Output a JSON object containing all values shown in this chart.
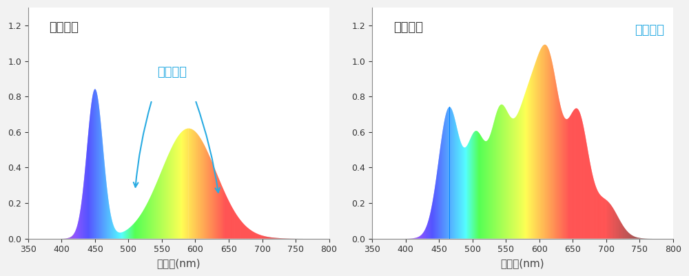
{
  "xlim": [
    350,
    800
  ],
  "ylim": [
    0,
    1.3
  ],
  "yticks": [
    0,
    0.2,
    0.4,
    0.6,
    0.8,
    1.0,
    1.2
  ],
  "xticks": [
    350,
    400,
    450,
    500,
    550,
    600,
    650,
    700,
    750,
    800
  ],
  "xlabel": "光波长(nm)",
  "ylabel1": "相对光谱",
  "annotation1": "光谱缺失",
  "annotation2": "光谱均衡",
  "bg_color": "#f2f2f2",
  "panel_bg": "#ffffff",
  "annotation_color": "#29abe2",
  "text_color": "#333333",
  "title_fontsize": 13,
  "label_fontsize": 11,
  "tick_fontsize": 9,
  "arrow_color": "#29abe2"
}
